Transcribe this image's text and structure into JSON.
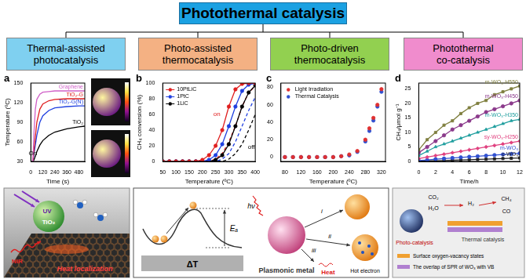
{
  "header": {
    "title": "Photothermal catalysis",
    "color": "#1ba1e2"
  },
  "branches": [
    {
      "lines": [
        "Thermal-assisted",
        "photocatalysis"
      ],
      "color": "#7fd0f0"
    },
    {
      "lines": [
        "Photo-assisted",
        "thermocatalysis"
      ],
      "color": "#f4b183"
    },
    {
      "lines": [
        "Photo-driven",
        "thermocatalysis"
      ],
      "color": "#92d050"
    },
    {
      "lines": [
        "Photothermal",
        "co-catalysis"
      ],
      "color": "#f08ccd"
    }
  ],
  "chart_data": [
    {
      "type": "line",
      "panel_label": "a",
      "x_label": "Time (s)",
      "y_label": "Temperature (ºC)",
      "x": [
        0,
        20,
        30,
        45,
        60,
        90,
        120,
        180,
        240,
        360,
        480,
        540
      ],
      "series": [
        {
          "name": "Graphene",
          "color": "#d060c8",
          "values": [
            30,
            30,
            70,
            110,
            125,
            133,
            136,
            137,
            138,
            138,
            138,
            138
          ]
        },
        {
          "name": "TiO₂-G",
          "color": "#e02020",
          "values": [
            30,
            30,
            45,
            68,
            90,
            110,
            118,
            123,
            125,
            126,
            126,
            126
          ]
        },
        {
          "name": "TiO₂-G(N)",
          "color": "#2040e0",
          "values": [
            30,
            30,
            40,
            55,
            70,
            90,
            100,
            108,
            112,
            114,
            115,
            115
          ]
        },
        {
          "name": "TiO₂",
          "color": "#000000",
          "values": [
            30,
            30,
            32,
            38,
            45,
            55,
            62,
            70,
            75,
            80,
            83,
            84
          ]
        }
      ],
      "annotations": [
        {
          "text": "On",
          "x": 20,
          "y": 42,
          "color": "#000000"
        }
      ],
      "xlim": [
        0,
        540
      ],
      "xticks": [
        0,
        120,
        240,
        360,
        480
      ],
      "ylim": [
        30,
        150
      ],
      "yticks": [
        30,
        60,
        90,
        120,
        150
      ],
      "grid": false
    },
    {
      "type": "line",
      "panel_label": "b",
      "x_label": "Temperature (ºC)",
      "y_label": "CH₄ conversion (%)",
      "x": [
        50,
        75,
        100,
        125,
        150,
        175,
        200,
        225,
        250,
        275,
        300,
        325,
        350,
        375,
        400
      ],
      "series": [
        {
          "name": "10PtLiC",
          "color": "#e02020",
          "marker": "circle",
          "values": [
            0,
            0,
            0,
            0,
            0,
            0,
            2,
            8,
            20,
            40,
            70,
            92,
            99,
            100,
            100
          ]
        },
        {
          "name": "1PtC",
          "color": "#2040e0",
          "marker": "circle",
          "values": [
            0,
            0,
            0,
            0,
            0,
            0,
            0,
            2,
            8,
            22,
            45,
            70,
            90,
            98,
            100
          ]
        },
        {
          "name": "1LiC",
          "color": "#000000",
          "marker": "circle",
          "values": [
            0,
            0,
            0,
            0,
            0,
            0,
            0,
            0,
            2,
            8,
            22,
            45,
            70,
            88,
            97
          ]
        },
        {
          "color": "#e02020",
          "line_style": "dashed",
          "values": [
            0,
            0,
            0,
            0,
            0,
            0,
            0,
            0,
            3,
            10,
            25,
            45,
            70,
            88,
            96
          ]
        },
        {
          "color": "#2040e0",
          "line_style": "dashed",
          "values": [
            0,
            0,
            0,
            0,
            0,
            0,
            0,
            0,
            0,
            3,
            10,
            25,
            45,
            65,
            82
          ]
        },
        {
          "color": "#000000",
          "line_style": "dashed",
          "values": [
            0,
            0,
            0,
            0,
            0,
            0,
            0,
            0,
            0,
            0,
            3,
            10,
            22,
            40,
            60
          ]
        }
      ],
      "annotations": [
        {
          "text": "on",
          "x": 255,
          "y": 60,
          "color": "#e02020"
        },
        {
          "text": "off",
          "x": 385,
          "y": 18,
          "color": "#000000"
        }
      ],
      "legend": "top-left",
      "xlim": [
        50,
        400
      ],
      "xticks": [
        50,
        100,
        150,
        200,
        250,
        300,
        350,
        400
      ],
      "ylim": [
        0,
        100
      ],
      "yticks": [
        0,
        20,
        40,
        60,
        80,
        100
      ],
      "grid": false
    },
    {
      "type": "scatter",
      "panel_label": "c",
      "x_label": "Temperature (ºC)",
      "x": [
        80,
        100,
        120,
        140,
        160,
        180,
        200,
        220,
        240,
        260,
        280,
        290,
        300,
        310,
        320
      ],
      "series": [
        {
          "name": "Light Irradiation",
          "color": "#e03030",
          "marker": "circle",
          "values": [
            0,
            0,
            0,
            0,
            0,
            0,
            0,
            1,
            3,
            7,
            20,
            33,
            45,
            60,
            78
          ]
        },
        {
          "name": "Thermal Catalysis",
          "color": "#3050d0",
          "marker": "circle",
          "values": [
            0,
            0,
            0,
            0,
            0,
            0,
            0,
            1,
            2,
            6,
            18,
            30,
            42,
            58,
            75
          ]
        }
      ],
      "legend": "top-left",
      "xlim": [
        70,
        330
      ],
      "xticks": [
        80,
        120,
        160,
        200,
        240,
        280,
        320
      ],
      "ylim": [
        -5,
        85
      ],
      "yticks": [
        0,
        20,
        40,
        60,
        80
      ],
      "grid": false
    },
    {
      "type": "line",
      "panel_label": "d",
      "x_label": "Time/h",
      "y_label": "CH₄/μmol g⁻¹",
      "x": [
        0,
        1,
        2,
        3,
        4,
        5,
        6,
        7,
        8,
        9,
        10,
        11,
        12
      ],
      "series": [
        {
          "name": "m-WO₃-H550",
          "color": "#7f7f3f",
          "marker": "square",
          "values": [
            4,
            7.5,
            10,
            12.5,
            14,
            16.5,
            18.5,
            20,
            21,
            23,
            24,
            25,
            26
          ]
        },
        {
          "name": "m-WO₃-H450",
          "color": "#8b3a8b",
          "marker": "circle",
          "values": [
            3,
            5,
            7,
            9,
            11,
            12.5,
            14,
            15.5,
            17,
            18,
            19,
            20,
            21
          ]
        },
        {
          "name": "m-WO₃-H350",
          "color": "#1f9e9e",
          "marker": "triangle",
          "values": [
            2,
            3.5,
            5,
            6,
            7,
            8,
            9,
            10,
            11,
            12,
            13,
            14,
            14.5
          ]
        },
        {
          "name": "sy-WO₃-H250",
          "color": "#e0407f",
          "marker": "diamond",
          "values": [
            1,
            1.5,
            2,
            2.5,
            3,
            3.5,
            4,
            4.5,
            5,
            5.5,
            6,
            6.5,
            7
          ]
        },
        {
          "name": "m-WO₃",
          "color": "#3050d0",
          "marker": "circle",
          "values": [
            0.3,
            0.5,
            0.8,
            1,
            1.2,
            1.4,
            1.6,
            1.8,
            2,
            2.2,
            2.4,
            2.6,
            2.8
          ]
        },
        {
          "name": "c-WO₃",
          "color": "#222222",
          "marker": "square",
          "values": [
            0.1,
            0.2,
            0.2,
            0.3,
            0.4,
            0.5,
            0.6,
            0.7,
            0.8,
            0.9,
            1,
            1.1,
            1.2
          ]
        }
      ],
      "xlim": [
        0,
        12
      ],
      "xticks": [
        0,
        2,
        4,
        6,
        8,
        10,
        12
      ],
      "ylim": [
        0,
        27
      ],
      "yticks": [
        0,
        5,
        10,
        15,
        20,
        25
      ],
      "grid": false
    }
  ],
  "schematics": {
    "left": {
      "uv": "UV",
      "tio2": "TiO₂",
      "nir": "NIR",
      "heat": "Heat localization"
    },
    "middle": {
      "delta_t": "ΔT",
      "ea": "Eₐ",
      "photon": "hν",
      "paths": [
        "i",
        "ii",
        "iii"
      ],
      "heat": "Heat",
      "hot_electron": "Hot electron",
      "metal": "Plasmonic metal"
    },
    "right": {
      "species": [
        "CO₂",
        "H₂O",
        "H₂",
        "CH₄",
        "CO"
      ],
      "photocatalysis": "Photo-catalysis",
      "thermal": "Thermal catalysis",
      "key": [
        "Surface oxygen-vacancy states",
        "The overlap of SPR of WO₃ with VB"
      ]
    }
  }
}
